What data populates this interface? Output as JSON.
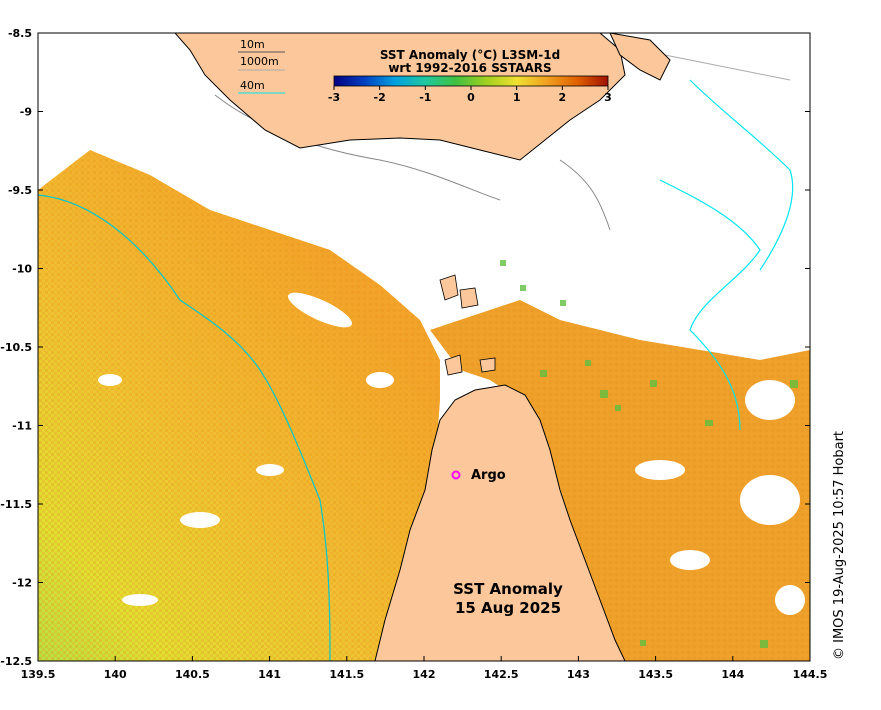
{
  "map": {
    "lon_range": [
      139.5,
      144.5
    ],
    "lat_range": [
      -12.5,
      -8.5
    ],
    "x_ticks": [
      "139.5",
      "140",
      "140.5",
      "141",
      "141.5",
      "142",
      "142.5",
      "143",
      "143.5",
      "144",
      "144.5"
    ],
    "y_ticks": [
      "-8.5",
      "-9",
      "-9.5",
      "-10",
      "-10.5",
      "-11",
      "-11.5",
      "-12",
      "-12.5"
    ],
    "title_lines": [
      "SST Anomaly (°C) L3SM-1d",
      "wrt 1992-2016 SSTAARS"
    ],
    "colorbar_ticks": [
      "-3",
      "-2",
      "-1",
      "0",
      "1",
      "2",
      "3"
    ],
    "colorbar_colors": [
      "#000080",
      "#0040c0",
      "#00a0e0",
      "#20c8a0",
      "#40c040",
      "#a0d020",
      "#f0e030",
      "#f0a020",
      "#e06000",
      "#a01000"
    ],
    "depth_legend": [
      "10m",
      "1000m",
      "40m"
    ],
    "depth_colors": [
      "#555555",
      "#aaaaaa",
      "#00e5ee"
    ],
    "argo_label": "Argo",
    "argo_color": "#ff00ff",
    "main_label_lines": [
      "SST Anomaly",
      "15 Aug 2025"
    ],
    "land_color": "#fcc89b",
    "credit": "© IMOS 19-Aug-2025 10:57 Hobart"
  }
}
